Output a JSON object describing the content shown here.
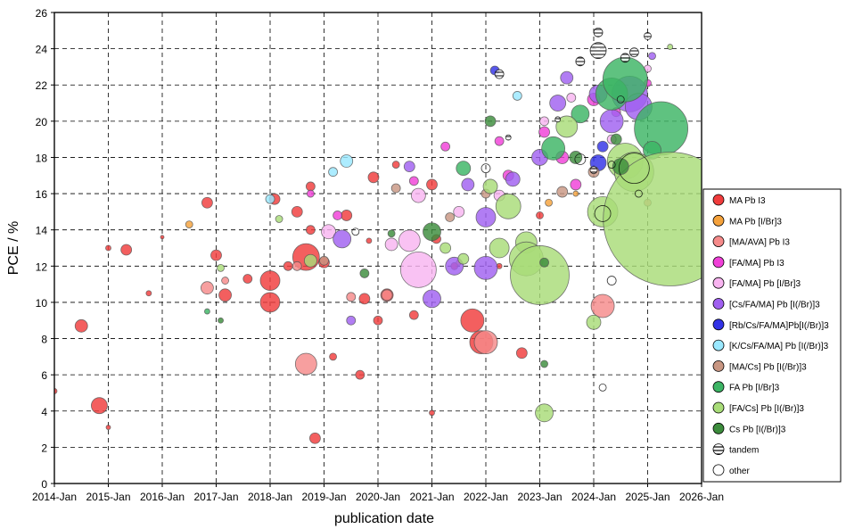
{
  "chart_data": {
    "type": "scatter",
    "xlabel": "publication date",
    "ylabel": "PCE / %",
    "xlim": [
      "2014-01",
      "2026-01"
    ],
    "ylim": [
      0,
      26
    ],
    "x_ticks": [
      "2014-Jan",
      "2015-Jan",
      "2016-Jan",
      "2017-Jan",
      "2018-Jan",
      "2019-Jan",
      "2020-Jan",
      "2021-Jan",
      "2022-Jan",
      "2023-Jan",
      "2024-Jan",
      "2025-Jan",
      "2026-Jan"
    ],
    "y_ticks": [
      0,
      2,
      4,
      6,
      8,
      10,
      12,
      14,
      16,
      18,
      20,
      22,
      24,
      26
    ],
    "grid": true,
    "legend_position": "right",
    "series": [
      {
        "name": "MA Pb I3",
        "color": "#f03c3c",
        "points": [
          [
            "2014-01",
            5.1,
            6
          ],
          [
            "2014-07",
            8.7,
            14
          ],
          [
            "2014-11",
            4.3,
            18
          ],
          [
            "2015-01",
            3.1,
            5
          ],
          [
            "2015-05",
            12.9,
            12
          ],
          [
            "2015-01",
            13.0,
            6
          ],
          [
            "2015-10",
            10.5,
            6
          ],
          [
            "2016-01",
            13.6,
            4
          ],
          [
            "2016-11",
            15.5,
            12
          ],
          [
            "2017-01",
            12.6,
            12
          ],
          [
            "2017-03",
            10.4,
            14
          ],
          [
            "2017-08",
            11.3,
            10
          ],
          [
            "2018-01",
            11.2,
            22
          ],
          [
            "2018-01",
            10.0,
            22
          ],
          [
            "2018-02",
            15.7,
            12
          ],
          [
            "2018-05",
            12.0,
            10
          ],
          [
            "2018-07",
            15.0,
            12
          ],
          [
            "2018-09",
            12.5,
            30
          ],
          [
            "2018-10",
            14.0,
            10
          ],
          [
            "2018-10",
            16.4,
            10
          ],
          [
            "2018-11",
            2.5,
            12
          ],
          [
            "2019-01",
            12.2,
            12
          ],
          [
            "2019-03",
            7.0,
            8
          ],
          [
            "2019-06",
            14.8,
            12
          ],
          [
            "2019-09",
            6.0,
            10
          ],
          [
            "2019-10",
            10.2,
            12
          ],
          [
            "2019-11",
            13.4,
            6
          ],
          [
            "2019-12",
            16.9,
            12
          ],
          [
            "2020-01",
            9.0,
            10
          ],
          [
            "2020-03",
            10.4,
            14
          ],
          [
            "2020-05",
            17.6,
            8
          ],
          [
            "2020-09",
            9.3,
            10
          ],
          [
            "2021-01",
            3.9,
            6
          ],
          [
            "2021-01",
            16.5,
            12
          ],
          [
            "2021-02",
            13.5,
            10
          ],
          [
            "2021-06",
            12.0,
            8
          ],
          [
            "2021-10",
            9.0,
            26
          ],
          [
            "2021-12",
            7.8,
            26
          ],
          [
            "2022-04",
            12.0,
            6
          ],
          [
            "2022-09",
            7.2,
            12
          ],
          [
            "2023-01",
            14.8,
            8
          ]
        ]
      },
      {
        "name": "MA Pb [I/Br]3",
        "color": "#f5a23c",
        "points": [
          [
            "2016-07",
            14.3,
            8
          ],
          [
            "2021-07",
            12.2,
            6
          ],
          [
            "2023-03",
            15.5,
            8
          ],
          [
            "2023-09",
            16.0,
            6
          ]
        ]
      },
      {
        "name": "[MA/AVA] Pb I3",
        "color": "#f58a8a",
        "points": [
          [
            "2016-11",
            10.8,
            14
          ],
          [
            "2017-03",
            11.2,
            8
          ],
          [
            "2018-07",
            12.0,
            10
          ],
          [
            "2018-09",
            6.6,
            24
          ],
          [
            "2019-07",
            10.3,
            10
          ],
          [
            "2020-03",
            10.4,
            12
          ],
          [
            "2022-01",
            7.8,
            26
          ],
          [
            "2024-03",
            9.8,
            26
          ],
          [
            "2025-01",
            15.5,
            8
          ]
        ]
      },
      {
        "name": "[FA/MA] Pb I3",
        "color": "#f040d8",
        "points": [
          [
            "2018-10",
            16.0,
            8
          ],
          [
            "2019-04",
            14.8,
            10
          ],
          [
            "2020-09",
            16.7,
            10
          ],
          [
            "2021-04",
            18.6,
            10
          ],
          [
            "2022-04",
            18.9,
            10
          ],
          [
            "2022-06",
            17.0,
            12
          ],
          [
            "2023-02",
            19.4,
            12
          ],
          [
            "2023-06",
            18.0,
            14
          ],
          [
            "2023-09",
            16.5,
            12
          ],
          [
            "2024-01",
            21.2,
            14
          ],
          [
            "2024-06",
            20.5,
            10
          ],
          [
            "2025-01",
            22.1,
            8
          ]
        ]
      },
      {
        "name": "[FA/MA] Pb [I/Br]3",
        "color": "#f8b4f0",
        "points": [
          [
            "2019-02",
            13.9,
            16
          ],
          [
            "2020-04",
            13.2,
            14
          ],
          [
            "2020-08",
            13.4,
            24
          ],
          [
            "2020-10",
            11.8,
            40
          ],
          [
            "2020-10",
            15.9,
            16
          ],
          [
            "2021-07",
            15.0,
            12
          ],
          [
            "2022-04",
            15.9,
            12
          ],
          [
            "2023-02",
            20.0,
            10
          ],
          [
            "2023-08",
            21.3,
            10
          ],
          [
            "2024-05",
            19.0,
            10
          ],
          [
            "2025-01",
            22.9,
            8
          ]
        ]
      },
      {
        "name": "[Cs/FA/MA] Pb [I(/Br)]3",
        "color": "#a060f0",
        "points": [
          [
            "2019-05",
            13.5,
            20
          ],
          [
            "2019-07",
            9.0,
            10
          ],
          [
            "2020-08",
            17.5,
            12
          ],
          [
            "2021-01",
            10.2,
            20
          ],
          [
            "2021-06",
            12.0,
            20
          ],
          [
            "2021-09",
            16.5,
            14
          ],
          [
            "2022-01",
            11.9,
            26
          ],
          [
            "2022-01",
            14.7,
            22
          ],
          [
            "2022-07",
            16.8,
            16
          ],
          [
            "2023-01",
            18.0,
            18
          ],
          [
            "2023-05",
            21.0,
            18
          ],
          [
            "2023-07",
            22.4,
            14
          ],
          [
            "2024-02",
            21.5,
            20
          ],
          [
            "2024-05",
            20.0,
            26
          ],
          [
            "2024-09",
            21.5,
            40
          ],
          [
            "2024-11",
            20.8,
            30
          ],
          [
            "2025-02",
            23.6,
            8
          ]
        ]
      },
      {
        "name": "[Rb/Cs/FA/MA]Pb[I(/Br)]3",
        "color": "#3232e6",
        "points": [
          [
            "2022-03",
            22.8,
            10
          ],
          [
            "2024-02",
            17.7,
            18
          ],
          [
            "2024-03",
            18.6,
            12
          ]
        ]
      },
      {
        "name": "[K/Cs/FA/MA] Pb [I(/Br)]3",
        "color": "#9ae8ff",
        "points": [
          [
            "2018-01",
            15.7,
            10
          ],
          [
            "2019-03",
            17.2,
            10
          ],
          [
            "2019-06",
            17.8,
            14
          ],
          [
            "2022-08",
            21.4,
            10
          ]
        ]
      },
      {
        "name": "[MA/Cs] Pb [I(/Br)]3",
        "color": "#c89682",
        "points": [
          [
            "2019-01",
            12.3,
            10
          ],
          [
            "2020-05",
            16.3,
            10
          ],
          [
            "2021-05",
            14.7,
            10
          ],
          [
            "2022-01",
            16.0,
            10
          ],
          [
            "2023-06",
            16.1,
            12
          ],
          [
            "2024-01",
            17.2,
            12
          ]
        ]
      },
      {
        "name": "FA Pb [I/Br]3",
        "color": "#3cb464",
        "points": [
          [
            "2016-11",
            9.5,
            6
          ],
          [
            "2021-08",
            17.4,
            16
          ],
          [
            "2023-04",
            18.5,
            26
          ],
          [
            "2023-10",
            20.4,
            20
          ],
          [
            "2024-05",
            21.5,
            36
          ],
          [
            "2024-08",
            22.3,
            50
          ],
          [
            "2025-04",
            19.6,
            60
          ],
          [
            "2025-02",
            18.4,
            20
          ]
        ]
      },
      {
        "name": "[FA/Cs] Pb [I(/Br)]3",
        "color": "#a8dc78",
        "points": [
          [
            "2017-02",
            11.9,
            8
          ],
          [
            "2018-03",
            14.6,
            8
          ],
          [
            "2018-10",
            12.3,
            14
          ],
          [
            "2021-04",
            13.0,
            12
          ],
          [
            "2021-08",
            12.4,
            12
          ],
          [
            "2022-02",
            16.4,
            16
          ],
          [
            "2022-04",
            13.0,
            22
          ],
          [
            "2022-06",
            15.3,
            28
          ],
          [
            "2022-10",
            13.3,
            24
          ],
          [
            "2022-10",
            12.4,
            38
          ],
          [
            "2023-01",
            11.5,
            66
          ],
          [
            "2023-02",
            3.9,
            20
          ],
          [
            "2023-07",
            19.7,
            24
          ],
          [
            "2024-01",
            8.9,
            16
          ],
          [
            "2024-03",
            15.0,
            34
          ],
          [
            "2024-08",
            17.8,
            40
          ],
          [
            "2024-10",
            17.2,
            44
          ],
          [
            "2025-06",
            14.6,
            150
          ],
          [
            "2025-06",
            24.1,
            6
          ]
        ]
      },
      {
        "name": "Cs Pb [I(/Br)]3",
        "color": "#3c8c3c",
        "points": [
          [
            "2017-02",
            9.0,
            6
          ],
          [
            "2019-10",
            11.6,
            10
          ],
          [
            "2020-04",
            13.8,
            8
          ],
          [
            "2021-01",
            13.9,
            20
          ],
          [
            "2022-02",
            20.0,
            12
          ],
          [
            "2023-02",
            12.2,
            10
          ],
          [
            "2023-02",
            6.6,
            8
          ],
          [
            "2023-09",
            18.0,
            14
          ],
          [
            "2024-07",
            17.5,
            18
          ],
          [
            "2024-06",
            19.0,
            12
          ]
        ]
      },
      {
        "name": "tandem",
        "color": "#ffffff",
        "style": "hatched",
        "points": [
          [
            "2022-04",
            22.6,
            10
          ],
          [
            "2022-06",
            19.1,
            6
          ],
          [
            "2023-05",
            20.1,
            6
          ],
          [
            "2023-10",
            23.3,
            10
          ],
          [
            "2024-02",
            24.9,
            10
          ],
          [
            "2024-02",
            23.9,
            18
          ],
          [
            "2024-08",
            23.5,
            10
          ],
          [
            "2024-10",
            23.8,
            10
          ],
          [
            "2025-01",
            24.7,
            8
          ],
          [
            "2024-01",
            17.3,
            8
          ]
        ]
      },
      {
        "name": "other",
        "color": "#ffffff",
        "style": "outline",
        "points": [
          [
            "2019-08",
            13.9,
            8
          ],
          [
            "2022-01",
            17.4,
            10
          ],
          [
            "2023-10",
            17.9,
            12
          ],
          [
            "2024-03",
            14.9,
            18
          ],
          [
            "2024-03",
            5.3,
            8
          ],
          [
            "2024-05",
            11.2,
            10
          ],
          [
            "2024-05",
            17.6,
            8
          ],
          [
            "2024-10",
            17.4,
            34
          ],
          [
            "2024-11",
            16.0,
            8
          ],
          [
            "2024-07",
            21.2,
            8
          ]
        ]
      }
    ]
  }
}
